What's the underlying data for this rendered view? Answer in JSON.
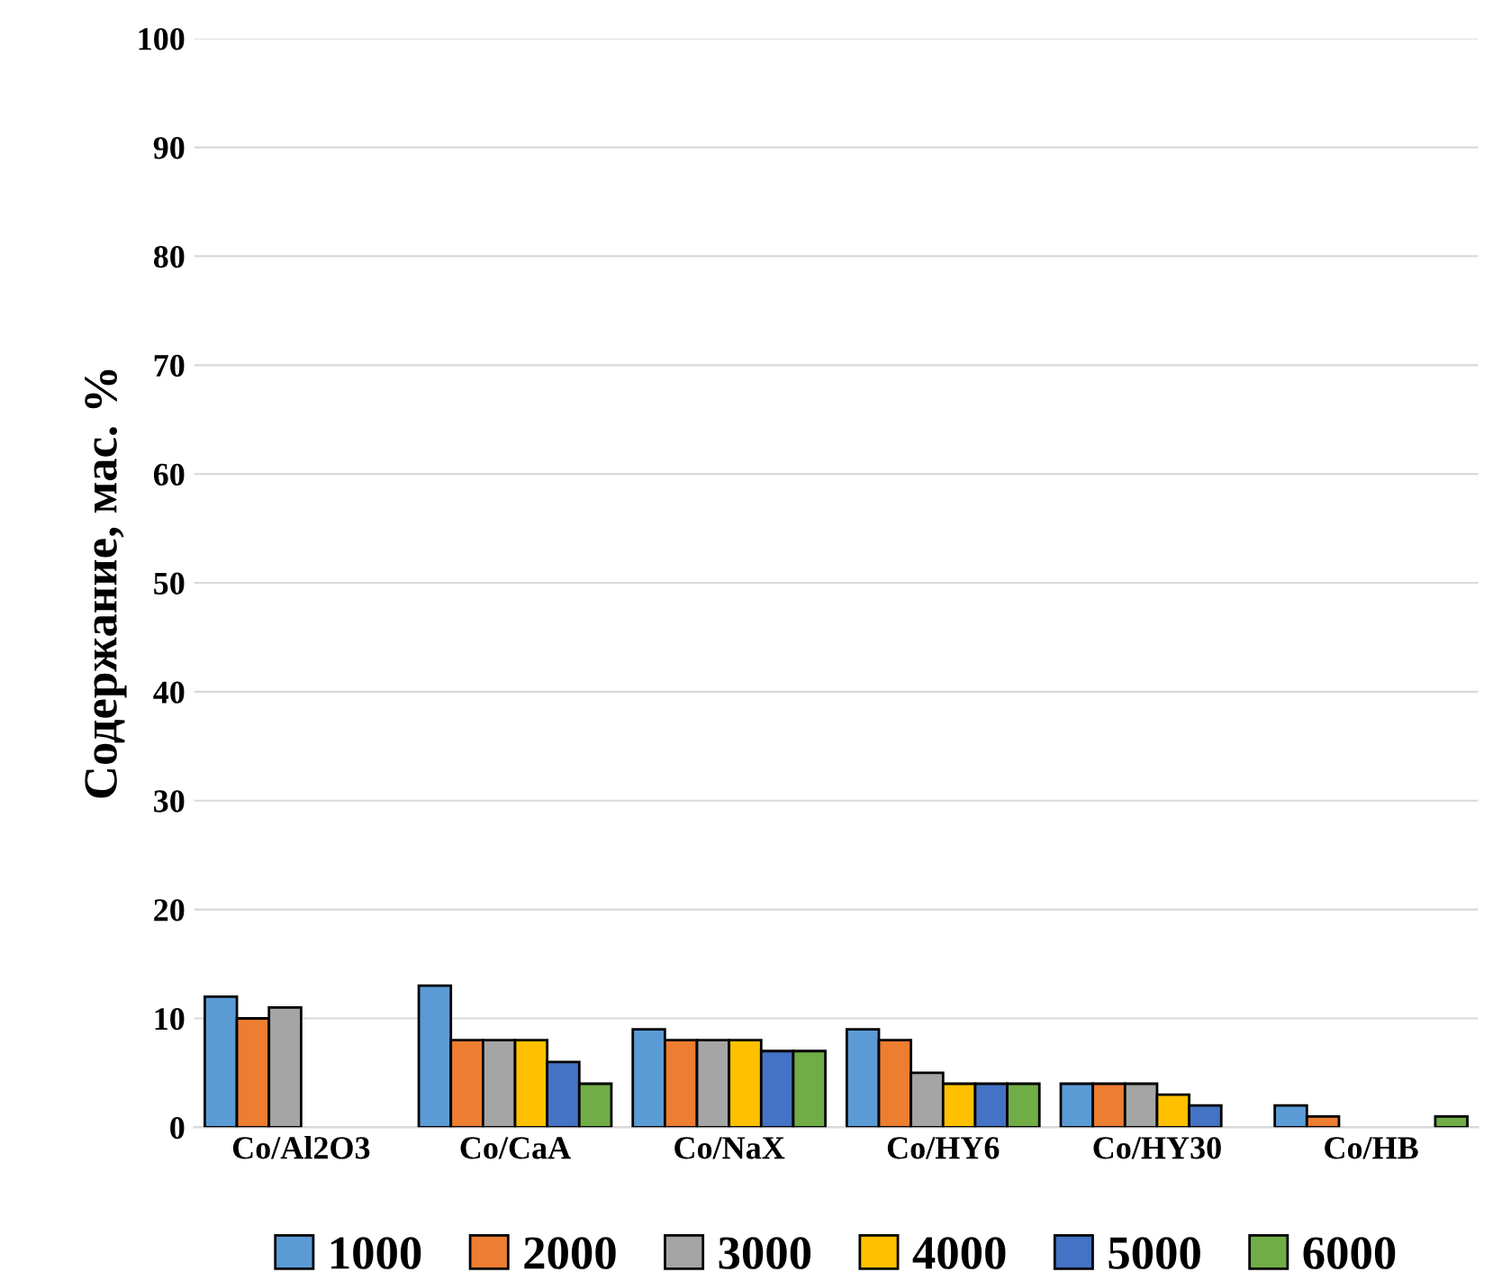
{
  "chart_data": {
    "type": "bar",
    "ylabel": "Содержание, мас. %",
    "categories": [
      "Co/Al2O3",
      "Co/CaA",
      "Co/NaX",
      "Co/HY6",
      "Co/HY30",
      "Co/HB"
    ],
    "series": [
      {
        "name": "1000",
        "color": "#5b9bd5",
        "values": [
          12,
          13,
          9,
          9,
          4,
          2
        ]
      },
      {
        "name": "2000",
        "color": "#ed7d31",
        "values": [
          10,
          8,
          8,
          8,
          4,
          1
        ]
      },
      {
        "name": "3000",
        "color": "#a5a5a5",
        "values": [
          11,
          8,
          8,
          5,
          4,
          null
        ]
      },
      {
        "name": "4000",
        "color": "#ffc000",
        "values": [
          null,
          8,
          8,
          4,
          3,
          null
        ]
      },
      {
        "name": "5000",
        "color": "#4472c4",
        "values": [
          null,
          6,
          7,
          4,
          2,
          null
        ]
      },
      {
        "name": "6000",
        "color": "#70ad47",
        "values": [
          null,
          4,
          7,
          4,
          null,
          1
        ]
      }
    ],
    "ylim": [
      0,
      100
    ],
    "yticks": [
      0,
      10,
      20,
      30,
      40,
      50,
      60,
      70,
      80,
      90,
      100
    ],
    "grid": "y",
    "legend": "bottom"
  }
}
